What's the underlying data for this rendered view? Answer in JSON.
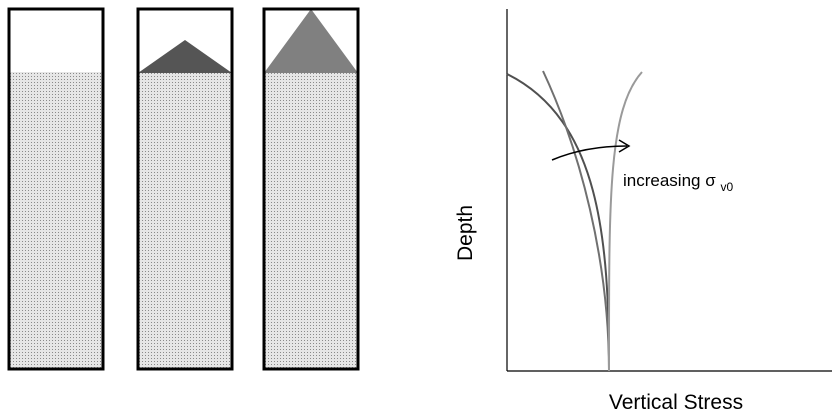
{
  "colors": {
    "column_border": "#000000",
    "soil_fill": "#e6e6e6",
    "soil_dots": "#8a8a8a",
    "small_mound": "#555555",
    "large_mound": "#808080",
    "axis": "#000000",
    "curve_dark": "#505050",
    "curve_mid": "#707070",
    "curve_light": "#9a9a9a",
    "arrow": "#000000"
  },
  "columns": [
    {
      "name": "column-no-surcharge",
      "surcharge": "none"
    },
    {
      "name": "column-small-surcharge",
      "surcharge": "small"
    },
    {
      "name": "column-large-surcharge",
      "surcharge": "large"
    }
  ],
  "plot": {
    "xlabel": "Vertical Stress",
    "ylabel": "Depth",
    "annotation": {
      "text": "increasing σ",
      "subscript": "v0"
    },
    "curve_count": 3
  }
}
